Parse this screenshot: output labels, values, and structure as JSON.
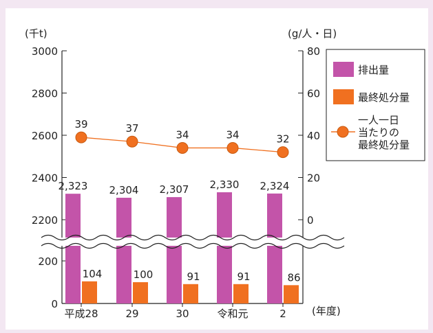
{
  "chart_data": {
    "type": "bar",
    "categories": [
      "平成28",
      "29",
      "30",
      "令和元",
      "2"
    ],
    "x_unit_label": "(年度)",
    "left_axis": {
      "unit_label": "(千t)",
      "upper_ticks": [
        "2200",
        "2400",
        "2600",
        "2800",
        "3000"
      ],
      "lower_ticks": [
        "0",
        "200"
      ],
      "broken": true,
      "upper_range": [
        2200,
        3000
      ],
      "lower_range": [
        0,
        200
      ]
    },
    "right_axis": {
      "unit_label": "(g/人・日)",
      "ticks": [
        "0",
        "20",
        "40",
        "60",
        "80"
      ],
      "range": [
        0,
        80
      ]
    },
    "series": [
      {
        "name": "排出量",
        "type": "bar",
        "axis": "left",
        "color": "#c354a9",
        "values": [
          2323,
          2304,
          2307,
          2330,
          2324
        ],
        "labels": [
          "2,323",
          "2,304",
          "2,307",
          "2,330",
          "2,324"
        ]
      },
      {
        "name": "最終処分量",
        "type": "bar",
        "axis": "left",
        "color": "#f07020",
        "values": [
          104,
          100,
          91,
          91,
          86
        ],
        "labels": [
          "104",
          "100",
          "91",
          "91",
          "86"
        ]
      },
      {
        "name": "一人一日当たりの最終処分量",
        "legend_lines": [
          "一人一日",
          "当たりの",
          "最終処分量"
        ],
        "type": "line",
        "axis": "right",
        "color": "#f07020",
        "values": [
          39,
          37,
          34,
          34,
          32
        ],
        "labels": [
          "39",
          "37",
          "34",
          "34",
          "32"
        ]
      }
    ],
    "grid": false,
    "legend": "top-right"
  }
}
